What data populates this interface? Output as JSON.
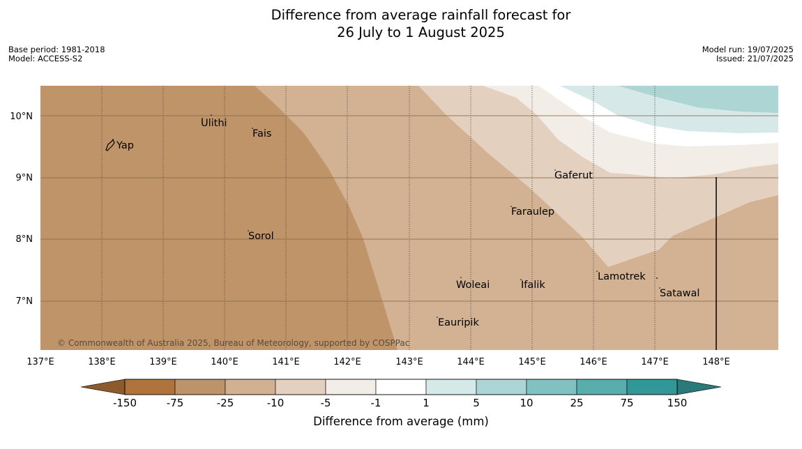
{
  "title": {
    "line1": "Difference from average rainfall forecast for",
    "line2": "26 July to 1 August 2025"
  },
  "meta_left": {
    "base_period": "Base period: 1981-2018",
    "model": "Model: ACCESS-S2"
  },
  "meta_right": {
    "model_run": "Model run: 19/07/2025",
    "issued": "Issued: 21/07/2025"
  },
  "map": {
    "lon_ticks": [
      "137°E",
      "138°E",
      "139°E",
      "140°E",
      "141°E",
      "142°E",
      "143°E",
      "144°E",
      "145°E",
      "146°E",
      "147°E",
      "148°E"
    ],
    "lat_ticks": [
      "10°N",
      "9°N",
      "8°N",
      "7°N"
    ],
    "places": [
      "Yap",
      "Ulithi",
      "Fais",
      "Gaferut",
      "Faraulep",
      "Sorol",
      "Lamotrek",
      "Woleai",
      "Ifalik",
      "Satawal",
      "Eauripik"
    ],
    "credit": "© Commonwealth of Australia 2025, Bureau of Meteorology, supported by COSPPac",
    "fill_colors": {
      "lt_-75": "#bf9468",
      "-25_-10": "#d2b292",
      "-10_-5": "#e3d0bf",
      "-5_-1": "#f3ede7",
      "-1_1": "#ffffff",
      "1_5": "#d6e9e8",
      "5_10": "#acd5d4"
    }
  },
  "colorbar": {
    "labels": [
      "-150",
      "-75",
      "-25",
      "-10",
      "-5",
      "-1",
      "1",
      "5",
      "10",
      "25",
      "75",
      "150"
    ],
    "colors": [
      "#af733c",
      "#be936a",
      "#d2b193",
      "#e4d0bf",
      "#f3ede7",
      "#ffffff",
      "#d5e9e8",
      "#acd4d5",
      "#82c1c1",
      "#58adad",
      "#319897"
    ],
    "extend_low": "#8c5a2c",
    "extend_high": "#2a7a79",
    "label": "Difference from average (mm)"
  }
}
